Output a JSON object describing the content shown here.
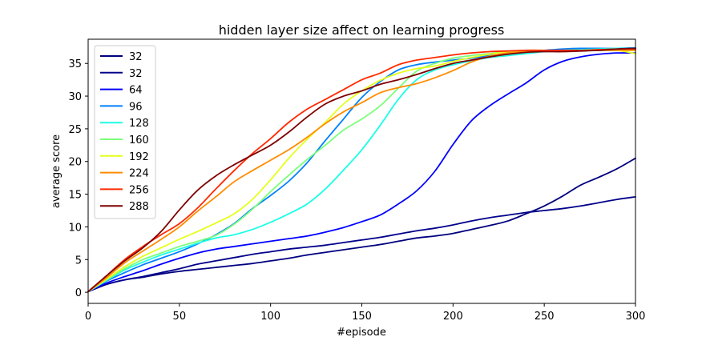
{
  "chart_data": {
    "type": "line",
    "title": "hidden layer size affect on learning progress",
    "xlabel": "#episode",
    "ylabel": "average score",
    "xlim": [
      0,
      300
    ],
    "ylim": [
      -1.7,
      38.7
    ],
    "xticks": [
      0,
      50,
      100,
      150,
      200,
      250,
      300
    ],
    "yticks": [
      0,
      5,
      10,
      15,
      20,
      25,
      30,
      35
    ],
    "grid": false,
    "legend_position": "top-left",
    "x": [
      0,
      10,
      20,
      30,
      40,
      50,
      60,
      70,
      80,
      90,
      100,
      110,
      120,
      130,
      140,
      150,
      160,
      170,
      180,
      190,
      200,
      210,
      220,
      230,
      240,
      250,
      260,
      270,
      280,
      290,
      300
    ],
    "series": [
      {
        "name": "32",
        "color": "#00007f",
        "values": [
          0.1,
          1.2,
          1.9,
          2.3,
          2.8,
          3.2,
          3.5,
          3.8,
          4.1,
          4.4,
          4.8,
          5.2,
          5.7,
          6.1,
          6.5,
          6.9,
          7.3,
          7.8,
          8.3,
          8.6,
          9.0,
          9.6,
          10.2,
          10.9,
          12.0,
          13.2,
          14.7,
          16.4,
          17.6,
          18.9,
          20.5
        ]
      },
      {
        "name": "32",
        "color": "#00008b",
        "values": [
          0.1,
          1.2,
          1.9,
          2.4,
          3.0,
          3.6,
          4.3,
          4.8,
          5.3,
          5.8,
          6.2,
          6.6,
          6.9,
          7.2,
          7.6,
          8.0,
          8.4,
          8.9,
          9.4,
          9.8,
          10.3,
          10.9,
          11.4,
          11.8,
          12.2,
          12.5,
          12.8,
          13.2,
          13.7,
          14.2,
          14.6
        ]
      },
      {
        "name": "64",
        "color": "#0000ff",
        "values": [
          0.1,
          1.4,
          2.4,
          3.3,
          4.3,
          5.2,
          6.0,
          6.6,
          7.0,
          7.4,
          7.8,
          8.2,
          8.6,
          9.2,
          9.9,
          10.8,
          11.8,
          13.5,
          15.5,
          18.5,
          22.6,
          26.2,
          28.5,
          30.3,
          32.0,
          34.0,
          35.3,
          36.0,
          36.4,
          36.6,
          36.6
        ]
      },
      {
        "name": "96",
        "color": "#0080ff",
        "values": [
          0.1,
          1.7,
          3.0,
          4.2,
          5.2,
          6.2,
          7.4,
          8.8,
          10.5,
          12.8,
          14.8,
          17.0,
          19.8,
          23.2,
          26.5,
          29.8,
          32.2,
          34.0,
          34.8,
          35.2,
          35.5,
          35.8,
          36.2,
          36.5,
          36.8,
          37.0,
          37.2,
          37.3,
          37.3,
          37.3,
          37.4
        ]
      },
      {
        "name": "128",
        "color": "#19ffe5",
        "values": [
          0.1,
          1.8,
          3.4,
          4.6,
          5.7,
          6.6,
          7.5,
          8.3,
          8.8,
          9.6,
          10.7,
          12.0,
          13.5,
          15.8,
          18.7,
          21.8,
          25.5,
          29.5,
          32.5,
          34.0,
          34.8,
          35.4,
          35.9,
          36.2,
          36.5,
          36.8,
          37.0,
          37.1,
          37.2,
          37.3,
          37.3
        ]
      },
      {
        "name": "160",
        "color": "#7dff7a",
        "values": [
          0.1,
          1.9,
          3.6,
          5.0,
          6.0,
          7.0,
          7.8,
          8.7,
          10.4,
          12.7,
          15.4,
          17.9,
          20.3,
          22.5,
          24.8,
          26.5,
          28.5,
          31.2,
          33.8,
          35.0,
          35.8,
          36.2,
          36.5,
          36.8,
          37.0,
          37.0,
          37.0,
          37.0,
          37.0,
          37.0,
          37.0
        ]
      },
      {
        "name": "192",
        "color": "#e5ff1a",
        "values": [
          0.1,
          2.0,
          3.9,
          5.5,
          6.8,
          8.1,
          9.3,
          10.6,
          12.0,
          14.2,
          17.2,
          20.5,
          23.4,
          26.0,
          28.8,
          30.8,
          32.4,
          33.5,
          34.2,
          34.6,
          35.3,
          35.9,
          36.4,
          36.8,
          37.0,
          37.0,
          37.0,
          37.0,
          37.1,
          37.0,
          36.5
        ]
      },
      {
        "name": "224",
        "color": "#ff8c00",
        "values": [
          0.1,
          2.2,
          4.5,
          6.3,
          8.1,
          10.0,
          12.4,
          14.6,
          16.9,
          18.6,
          20.2,
          21.8,
          23.7,
          25.8,
          27.6,
          29.0,
          30.5,
          31.3,
          31.9,
          32.8,
          33.9,
          35.2,
          36.1,
          36.6,
          36.8,
          36.9,
          37.0,
          37.0,
          37.0,
          37.0,
          37.0
        ]
      },
      {
        "name": "256",
        "color": "#ff2a00",
        "values": [
          0.1,
          2.5,
          5.0,
          7.0,
          8.8,
          10.5,
          12.9,
          15.8,
          18.6,
          21.2,
          23.5,
          26.0,
          28.0,
          29.5,
          31.0,
          32.5,
          33.5,
          34.8,
          35.5,
          35.9,
          36.3,
          36.6,
          36.8,
          36.9,
          37.0,
          37.0,
          37.0,
          37.0,
          37.1,
          37.2,
          37.2
        ]
      },
      {
        "name": "288",
        "color": "#7f0000",
        "values": [
          0.1,
          2.5,
          4.8,
          6.8,
          9.3,
          12.6,
          15.6,
          17.8,
          19.5,
          21.0,
          22.5,
          24.5,
          26.8,
          28.8,
          30.0,
          30.8,
          31.8,
          32.5,
          33.3,
          34.2,
          35.0,
          35.5,
          36.0,
          36.4,
          36.7,
          36.8,
          36.8,
          36.9,
          37.0,
          37.2,
          37.3
        ]
      }
    ]
  }
}
